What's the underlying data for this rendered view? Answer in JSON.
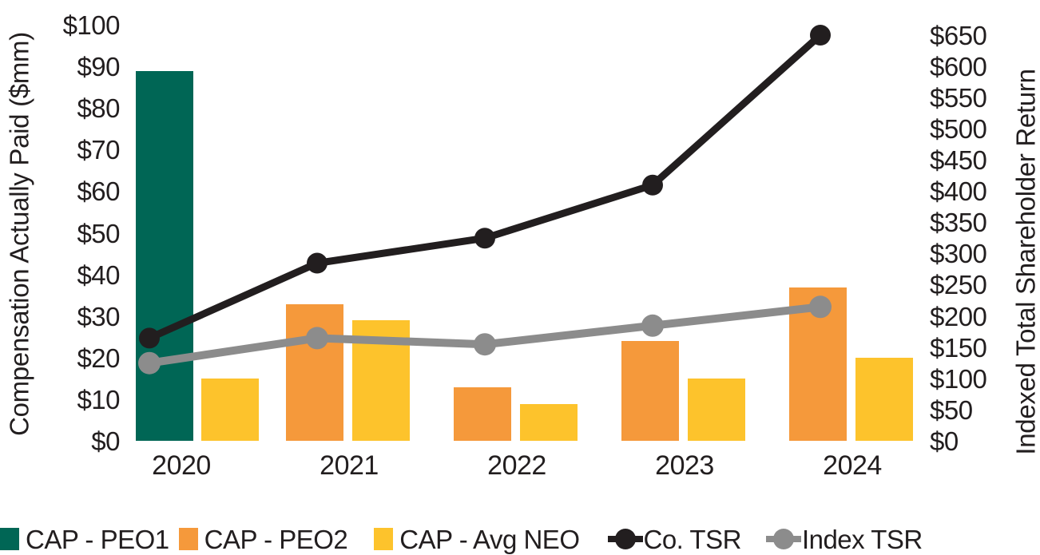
{
  "chart_data": {
    "type": "combo-bar-line",
    "categories": [
      "2020",
      "2021",
      "2022",
      "2023",
      "2024"
    ],
    "bar_series": [
      {
        "name": "CAP - PEO1",
        "color": "#006655",
        "slot": "primary",
        "axis": "left",
        "values": [
          89,
          null,
          null,
          null,
          null
        ]
      },
      {
        "name": "CAP - PEO2",
        "color": "#F5993B",
        "slot": "primary",
        "axis": "left",
        "values": [
          null,
          33,
          13,
          24,
          37
        ]
      },
      {
        "name": "CAP - Avg NEO",
        "color": "#FDC32C",
        "slot": "secondary",
        "axis": "left",
        "values": [
          15,
          29,
          9,
          15,
          20
        ]
      }
    ],
    "line_series": [
      {
        "name": "Co. TSR",
        "color": "#221E1F",
        "axis": "right",
        "values": [
          165,
          285,
          325,
          410,
          650
        ]
      },
      {
        "name": "Index TSR",
        "color": "#8C8C8C",
        "axis": "right",
        "values": [
          125,
          165,
          155,
          185,
          215
        ]
      }
    ],
    "left_axis": {
      "title": "Compensation Actually Paid ($mm)",
      "min": 0,
      "max": 100,
      "step": 10,
      "tick_prefix": "$"
    },
    "right_axis": {
      "title": "Indexed Total Shareholder Return",
      "min": 0,
      "max": 650,
      "step": 50,
      "tick_prefix": "$"
    },
    "legend": [
      {
        "label": "CAP - PEO1",
        "marker": "square",
        "color": "#006655"
      },
      {
        "label": "CAP - PEO2",
        "marker": "square",
        "color": "#F5993B"
      },
      {
        "label": "CAP - Avg NEO",
        "marker": "square",
        "color": "#FDC32C"
      },
      {
        "label": "Co. TSR",
        "marker": "line-dot",
        "color": "#221E1F"
      },
      {
        "label": "Index TSR",
        "marker": "line-dot",
        "color": "#8C8C8C"
      }
    ],
    "grid": false,
    "legend_position": "bottom"
  }
}
